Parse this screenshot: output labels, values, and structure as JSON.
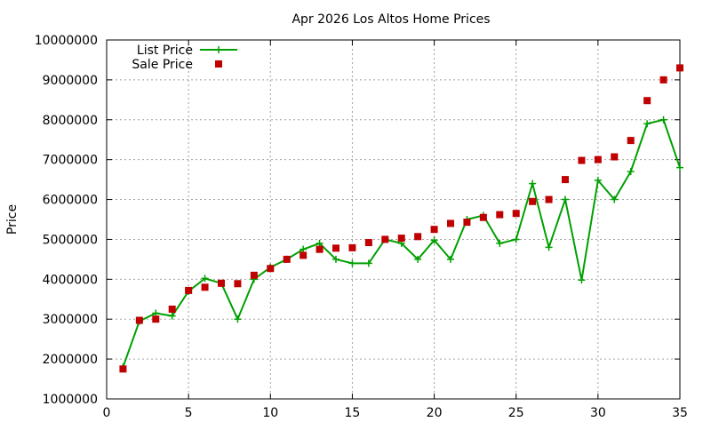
{
  "chart_data": {
    "type": "line",
    "title": "Apr 2026 Los Altos Home Prices",
    "xlabel": "",
    "ylabel": "Price",
    "xlim": [
      0,
      35
    ],
    "ylim": [
      1000000,
      10000000
    ],
    "x_ticks": [
      0,
      5,
      10,
      15,
      20,
      25,
      30,
      35
    ],
    "y_ticks": [
      1000000,
      2000000,
      3000000,
      4000000,
      5000000,
      6000000,
      7000000,
      8000000,
      9000000,
      10000000
    ],
    "grid": true,
    "legend_position": "top-left",
    "series": [
      {
        "name": "List Price",
        "kind": "line-with-plus-markers",
        "color": "#00a000",
        "x": [
          1,
          2,
          3,
          4,
          5,
          6,
          7,
          8,
          9,
          10,
          11,
          12,
          13,
          14,
          15,
          16,
          17,
          18,
          19,
          20,
          21,
          22,
          23,
          24,
          25,
          26,
          27,
          28,
          29,
          30,
          31,
          32,
          33,
          34,
          35
        ],
        "values": [
          1800000,
          2950000,
          3150000,
          3080000,
          3700000,
          4020000,
          3900000,
          3000000,
          4000000,
          4300000,
          4500000,
          4750000,
          4900000,
          4500000,
          4400000,
          4400000,
          5000000,
          4900000,
          4500000,
          4980000,
          4500000,
          5500000,
          5600000,
          4900000,
          5000000,
          6400000,
          4800000,
          6000000,
          3980000,
          6480000,
          6000000,
          6700000,
          7900000,
          8000000,
          6800000
        ]
      },
      {
        "name": "Sale Price",
        "kind": "square-markers",
        "color": "#c00000",
        "x": [
          1,
          2,
          3,
          4,
          5,
          6,
          7,
          8,
          9,
          10,
          11,
          12,
          13,
          14,
          15,
          16,
          17,
          18,
          19,
          20,
          21,
          22,
          23,
          24,
          25,
          26,
          27,
          28,
          29,
          30,
          31,
          32,
          33,
          34,
          35
        ],
        "values": [
          1750000,
          2970000,
          3000000,
          3250000,
          3720000,
          3800000,
          3900000,
          3890000,
          4100000,
          4270000,
          4500000,
          4600000,
          4750000,
          4780000,
          4790000,
          4920000,
          5000000,
          5030000,
          5070000,
          5250000,
          5400000,
          5430000,
          5550000,
          5620000,
          5650000,
          5950000,
          6000000,
          6500000,
          6980000,
          7000000,
          7070000,
          7480000,
          8480000,
          9000000,
          9300000
        ]
      }
    ]
  }
}
